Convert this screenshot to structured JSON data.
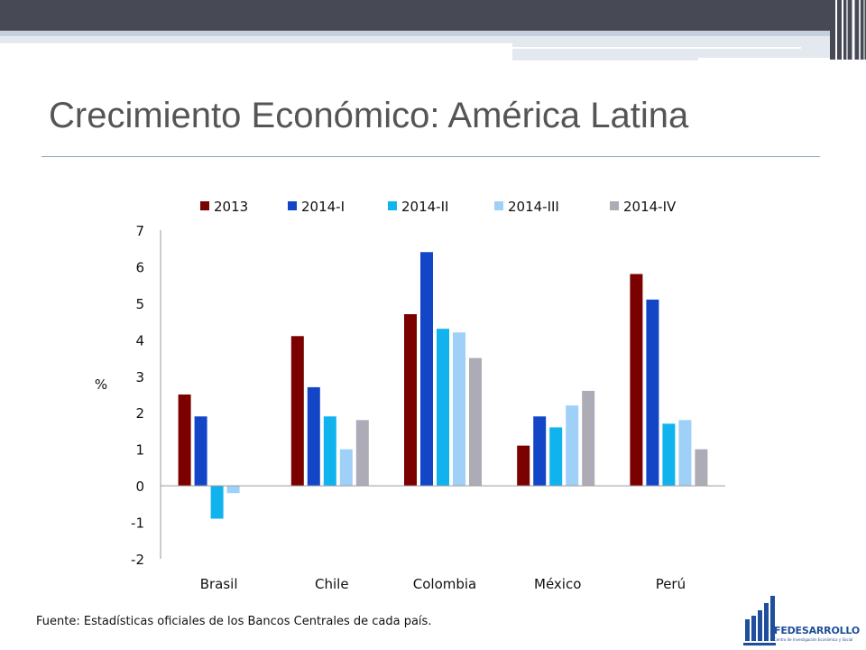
{
  "slide": {
    "title": "Crecimiento Económico: América Latina",
    "source": "Fuente: Estadísticas oficiales de los Bancos Centrales de cada país."
  },
  "logo": {
    "name": "FEDESARROLLO",
    "tagline": "Centro de Investigación Económica y Social"
  },
  "colors": {
    "header_band": "#474954",
    "title_text": "#555555",
    "title_rule": "#8ea3c0",
    "logo_blue": "#1f4e9c"
  },
  "chart_data": {
    "type": "bar",
    "title": "",
    "xlabel": "",
    "ylabel": "%",
    "ylim": [
      -2,
      7
    ],
    "yticks": [
      7,
      6,
      5,
      4,
      3,
      2,
      1,
      0,
      -1,
      -2
    ],
    "grid": false,
    "legend_position": "top",
    "categories": [
      "Brasil",
      "Chile",
      "Colombia",
      "México",
      "Perú"
    ],
    "series": [
      {
        "name": "2013",
        "color": "#7b0000",
        "values": [
          2.5,
          4.1,
          4.7,
          1.1,
          5.8
        ]
      },
      {
        "name": "2014-I",
        "color": "#1346c6",
        "values": [
          1.9,
          2.7,
          6.4,
          1.9,
          5.1
        ]
      },
      {
        "name": "2014-II",
        "color": "#11b3ee",
        "values": [
          -0.9,
          1.9,
          4.3,
          1.6,
          1.7
        ]
      },
      {
        "name": "2014-III",
        "color": "#9fd0f7",
        "values": [
          -0.2,
          1.0,
          4.2,
          2.2,
          1.8
        ]
      },
      {
        "name": "2014-IV",
        "color": "#adabb5",
        "values": [
          null,
          1.8,
          3.5,
          2.6,
          1.0
        ]
      }
    ]
  }
}
